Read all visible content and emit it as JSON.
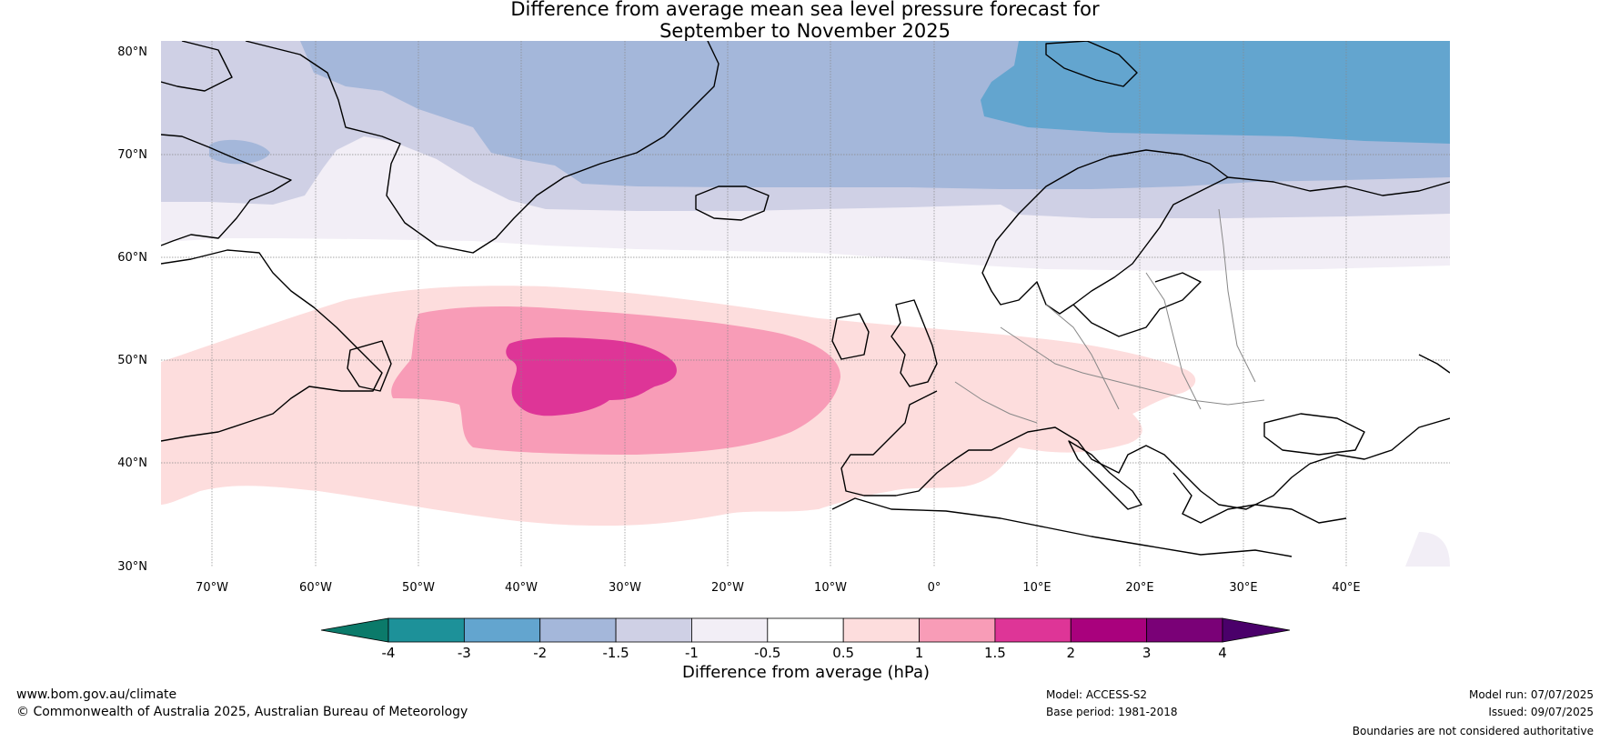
{
  "title": {
    "line1": "Difference from average mean sea level pressure forecast for",
    "line2": "September to November 2025"
  },
  "map": {
    "lat_labels": [
      "80°N",
      "70°N",
      "60°N",
      "50°N",
      "40°N",
      "30°N"
    ],
    "lon_labels": [
      "70°W",
      "60°W",
      "50°W",
      "40°W",
      "30°W",
      "20°W",
      "10°W",
      "0°",
      "10°E",
      "20°E",
      "30°E",
      "40°E"
    ],
    "lat_range": [
      30,
      81
    ],
    "lon_range": [
      -75,
      50
    ]
  },
  "colorbar": {
    "label": "Difference from average (hPa)",
    "ticks": [
      "-4",
      "-3",
      "-2",
      "-1.5",
      "-1",
      "-0.5",
      "0.5",
      "1",
      "1.5",
      "2",
      "3",
      "4"
    ],
    "colors": [
      "#0b7a6a",
      "#1d9199",
      "#63a5cf",
      "#a4b7da",
      "#cfd0e5",
      "#f2eef6",
      "#ffffff",
      "#fddddd",
      "#f89cb7",
      "#de3597",
      "#a9017d",
      "#7a0177",
      "#4a006a"
    ]
  },
  "footer": {
    "website": "www.bom.gov.au/climate",
    "copyright": "© Commonwealth of Australia 2025, Australian Bureau of Meteorology",
    "model": "Model: ACCESS-S2",
    "base_period": "Base period: 1981-2018",
    "model_run": "Model run: 07/07/2025",
    "issued": "Issued: 09/07/2025",
    "disclaimer": "Boundaries are not considered authoritative"
  }
}
